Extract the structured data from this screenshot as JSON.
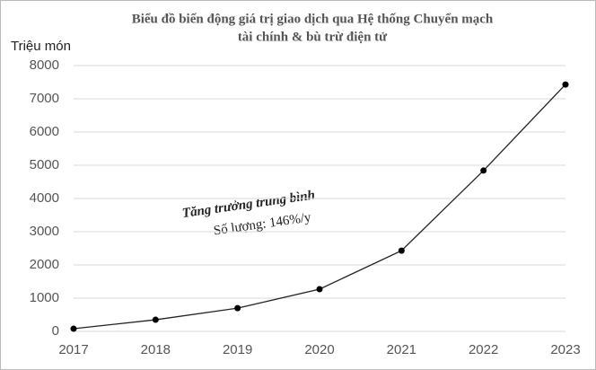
{
  "chart_data": {
    "type": "line",
    "title": [
      "Biểu đồ biến động giá trị giao dịch qua Hệ thống Chuyển mạch",
      "tài chính & bù trừ điện tử"
    ],
    "y_label": "Triệu món",
    "annotations": [
      "Tăng trưởng trung bình",
      "Số lượng: 146%/y"
    ],
    "categories": [
      "2017",
      "2018",
      "2019",
      "2020",
      "2021",
      "2022",
      "2023"
    ],
    "series": [
      {
        "name": "Số lượng",
        "color": "#222222",
        "values": [
          80,
          350,
          700,
          1270,
          2430,
          4840,
          7430
        ]
      }
    ],
    "ylim": [
      0,
      8000
    ],
    "yticks": [
      0,
      1000,
      2000,
      3000,
      4000,
      5000,
      6000,
      7000,
      8000
    ],
    "grid": true
  }
}
